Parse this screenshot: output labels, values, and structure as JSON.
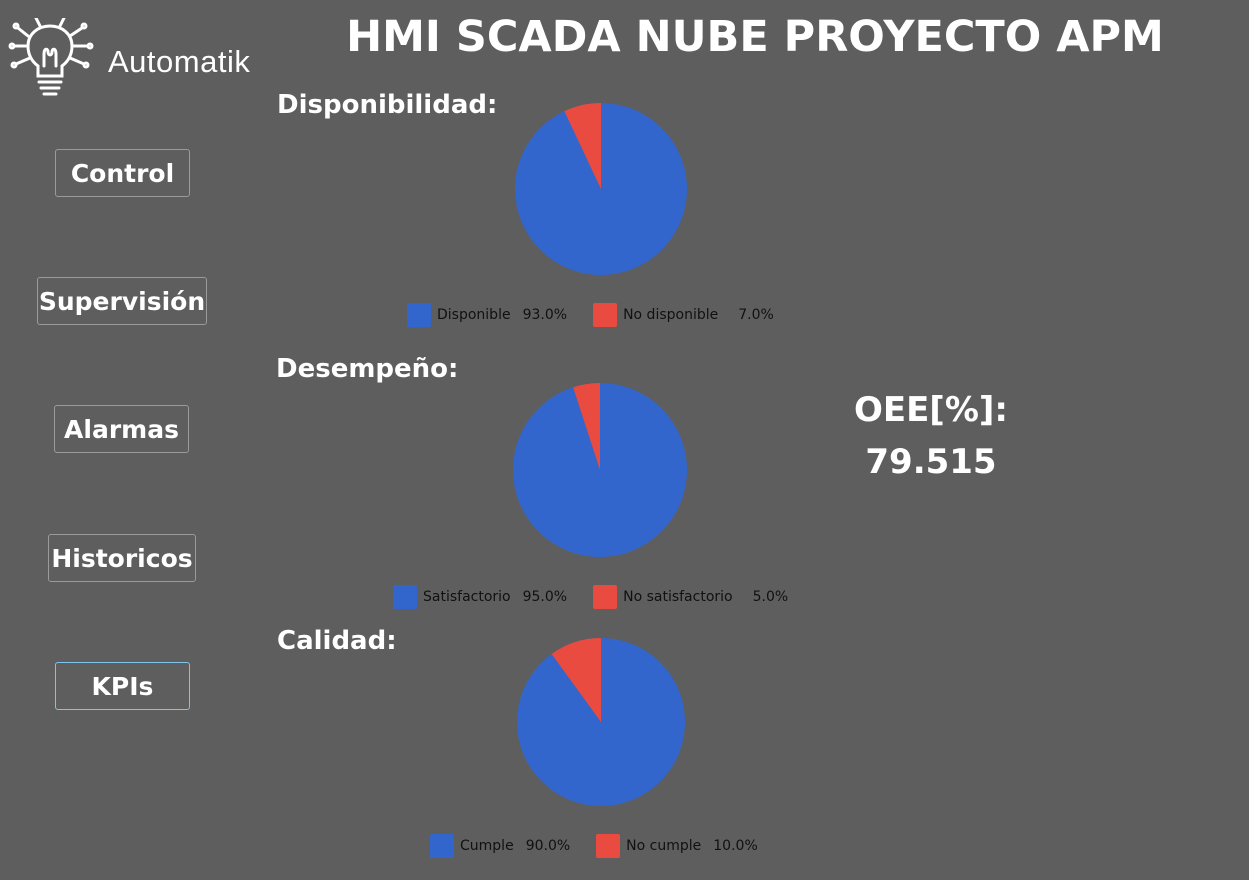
{
  "app": {
    "title": "HMI SCADA NUBE PROYECTO APM",
    "logo_text": "Automatik",
    "logo_icon": "lightbulb-circuit-icon"
  },
  "nav": {
    "items": [
      {
        "label": "Control",
        "active": false
      },
      {
        "label": "Supervisión",
        "active": false
      },
      {
        "label": "Alarmas",
        "active": false
      },
      {
        "label": "Historicos",
        "active": false
      },
      {
        "label": "KPIs",
        "active": true
      }
    ]
  },
  "colors": {
    "background": "#5e5e5e",
    "primary_slice": "#3366cc",
    "secondary_slice": "#e94b40",
    "active_border": "#7cc4ec"
  },
  "kpis": {
    "disponibilidad": {
      "label": "Disponibilidad:",
      "slices": [
        {
          "name": "Disponible",
          "pct_text": "93.0%",
          "value": 93.0
        },
        {
          "name": "No disponible",
          "pct_text": "7.0%",
          "value": 7.0
        }
      ]
    },
    "desempeno": {
      "label": "Desempeño:",
      "slices": [
        {
          "name": "Satisfactorio",
          "pct_text": "95.0%",
          "value": 95.0
        },
        {
          "name": "No satisfactorio",
          "pct_text": "5.0%",
          "value": 5.0
        }
      ]
    },
    "calidad": {
      "label": "Calidad:",
      "slices": [
        {
          "name": "Cumple",
          "pct_text": "90.0%",
          "value": 90.0
        },
        {
          "name": "No cumple",
          "pct_text": "10.0%",
          "value": 10.0
        }
      ]
    }
  },
  "oee": {
    "label": "OEE[%]:",
    "value": "79.515"
  }
}
